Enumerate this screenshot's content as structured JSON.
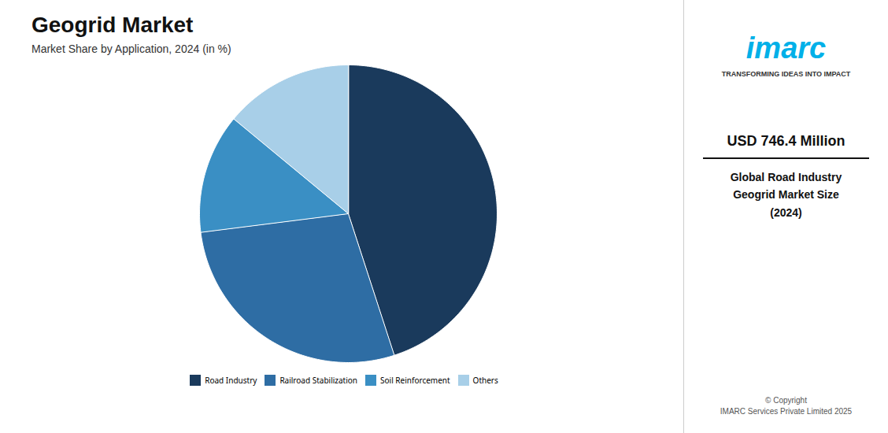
{
  "chart_data": {
    "type": "pie",
    "title": "Geogrid Market",
    "subtitle": "Market Share by Application, 2024 (in %)",
    "categories": [
      "Road Industry",
      "Railroad Stabilization",
      "Soil Reinforcement",
      "Others"
    ],
    "values": [
      45,
      28,
      13,
      14
    ],
    "colors": [
      "#1a3a5c",
      "#2e6da4",
      "#3a8fc4",
      "#a8cfe8"
    ],
    "legend": "bottom",
    "annotations": [
      "imarc",
      "TRANSFORMING IDEAS INTO IMPACT",
      "USD 746.4 Million",
      "Global Road Industry",
      "Geogrid Market Size",
      "(2024)",
      "© Copyright",
      "IMARC Services Private Limited 2025"
    ]
  }
}
